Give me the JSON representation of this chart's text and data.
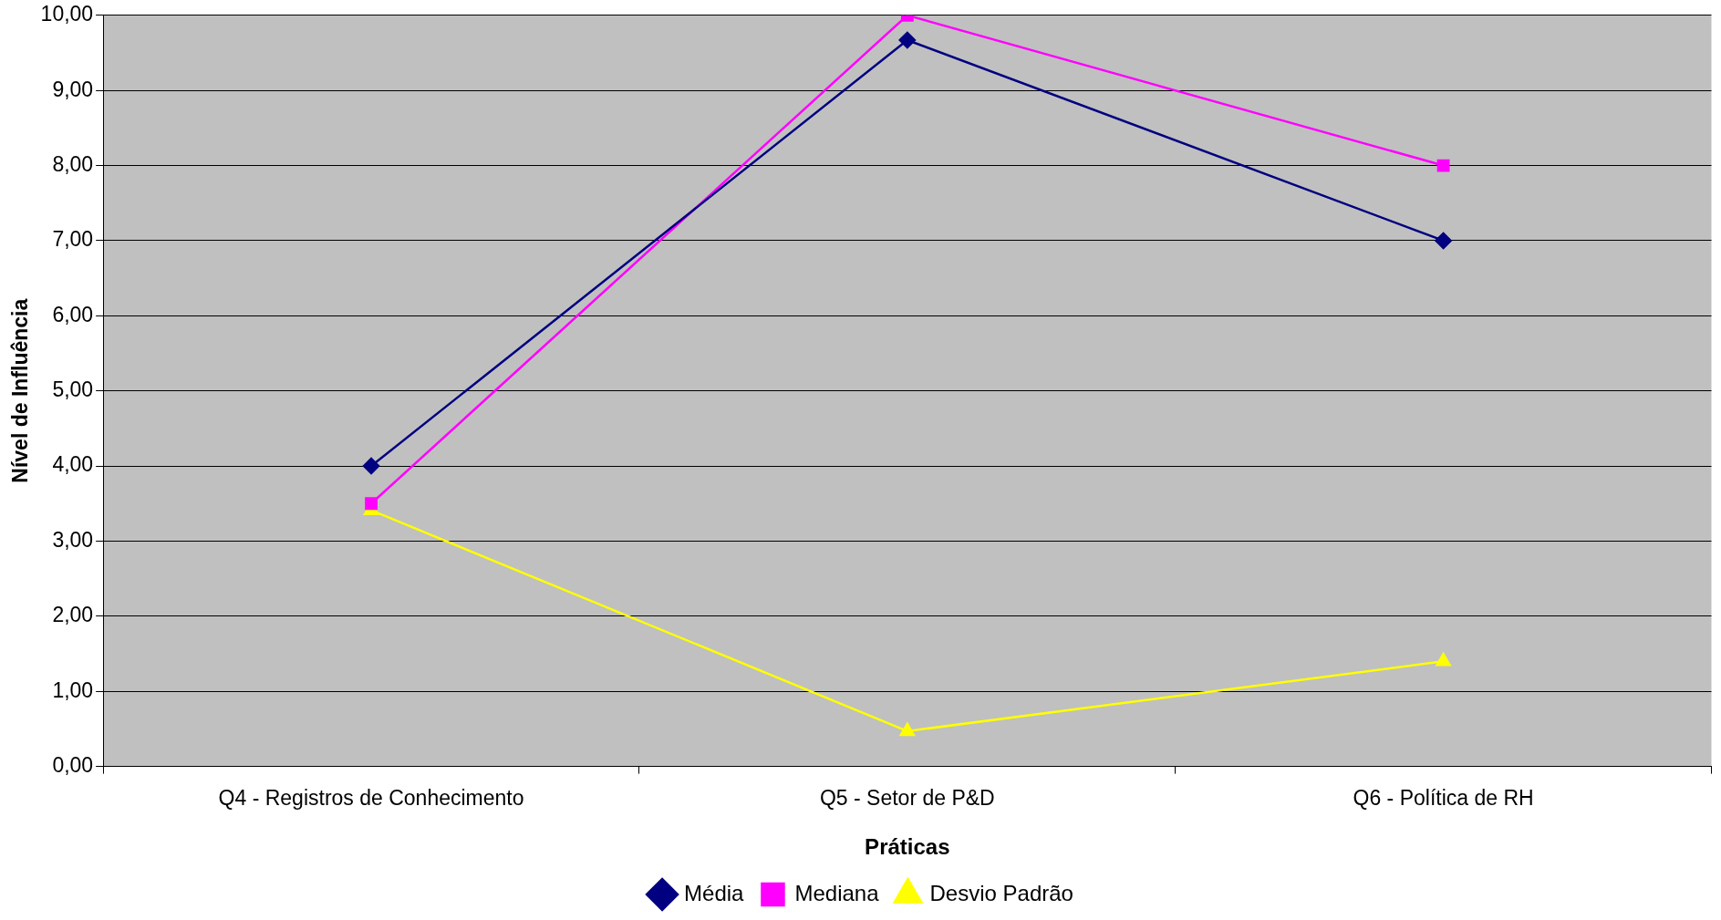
{
  "chart_data": {
    "type": "line",
    "xlabel": "Práticas",
    "ylabel": "Nível de Influência",
    "categories": [
      "Q4 - Registros de Conhecimento",
      "Q5 - Setor de P&D",
      "Q6 - Política de RH"
    ],
    "series": [
      {
        "name": "Média",
        "color": "#000080",
        "marker": "diamond",
        "values": [
          4.0,
          9.67,
          7.0
        ]
      },
      {
        "name": "Mediana",
        "color": "#ff00ff",
        "marker": "square",
        "values": [
          3.5,
          10.0,
          8.0
        ]
      },
      {
        "name": "Desvio Padrão",
        "color": "#ffff00",
        "marker": "triangle",
        "values": [
          3.41,
          0.47,
          1.4
        ]
      }
    ],
    "ylim": [
      0,
      10
    ],
    "yticks": [
      {
        "value": 0,
        "label": "0,00"
      },
      {
        "value": 1,
        "label": "1,00"
      },
      {
        "value": 2,
        "label": "2,00"
      },
      {
        "value": 3,
        "label": "3,00"
      },
      {
        "value": 4,
        "label": "4,00"
      },
      {
        "value": 5,
        "label": "5,00"
      },
      {
        "value": 6,
        "label": "6,00"
      },
      {
        "value": 7,
        "label": "7,00"
      },
      {
        "value": 8,
        "label": "8,00"
      },
      {
        "value": 9,
        "label": "9,00"
      },
      {
        "value": 10,
        "label": "10,00"
      }
    ],
    "grid": "y",
    "legend": "bottom",
    "line_style": "solid"
  }
}
